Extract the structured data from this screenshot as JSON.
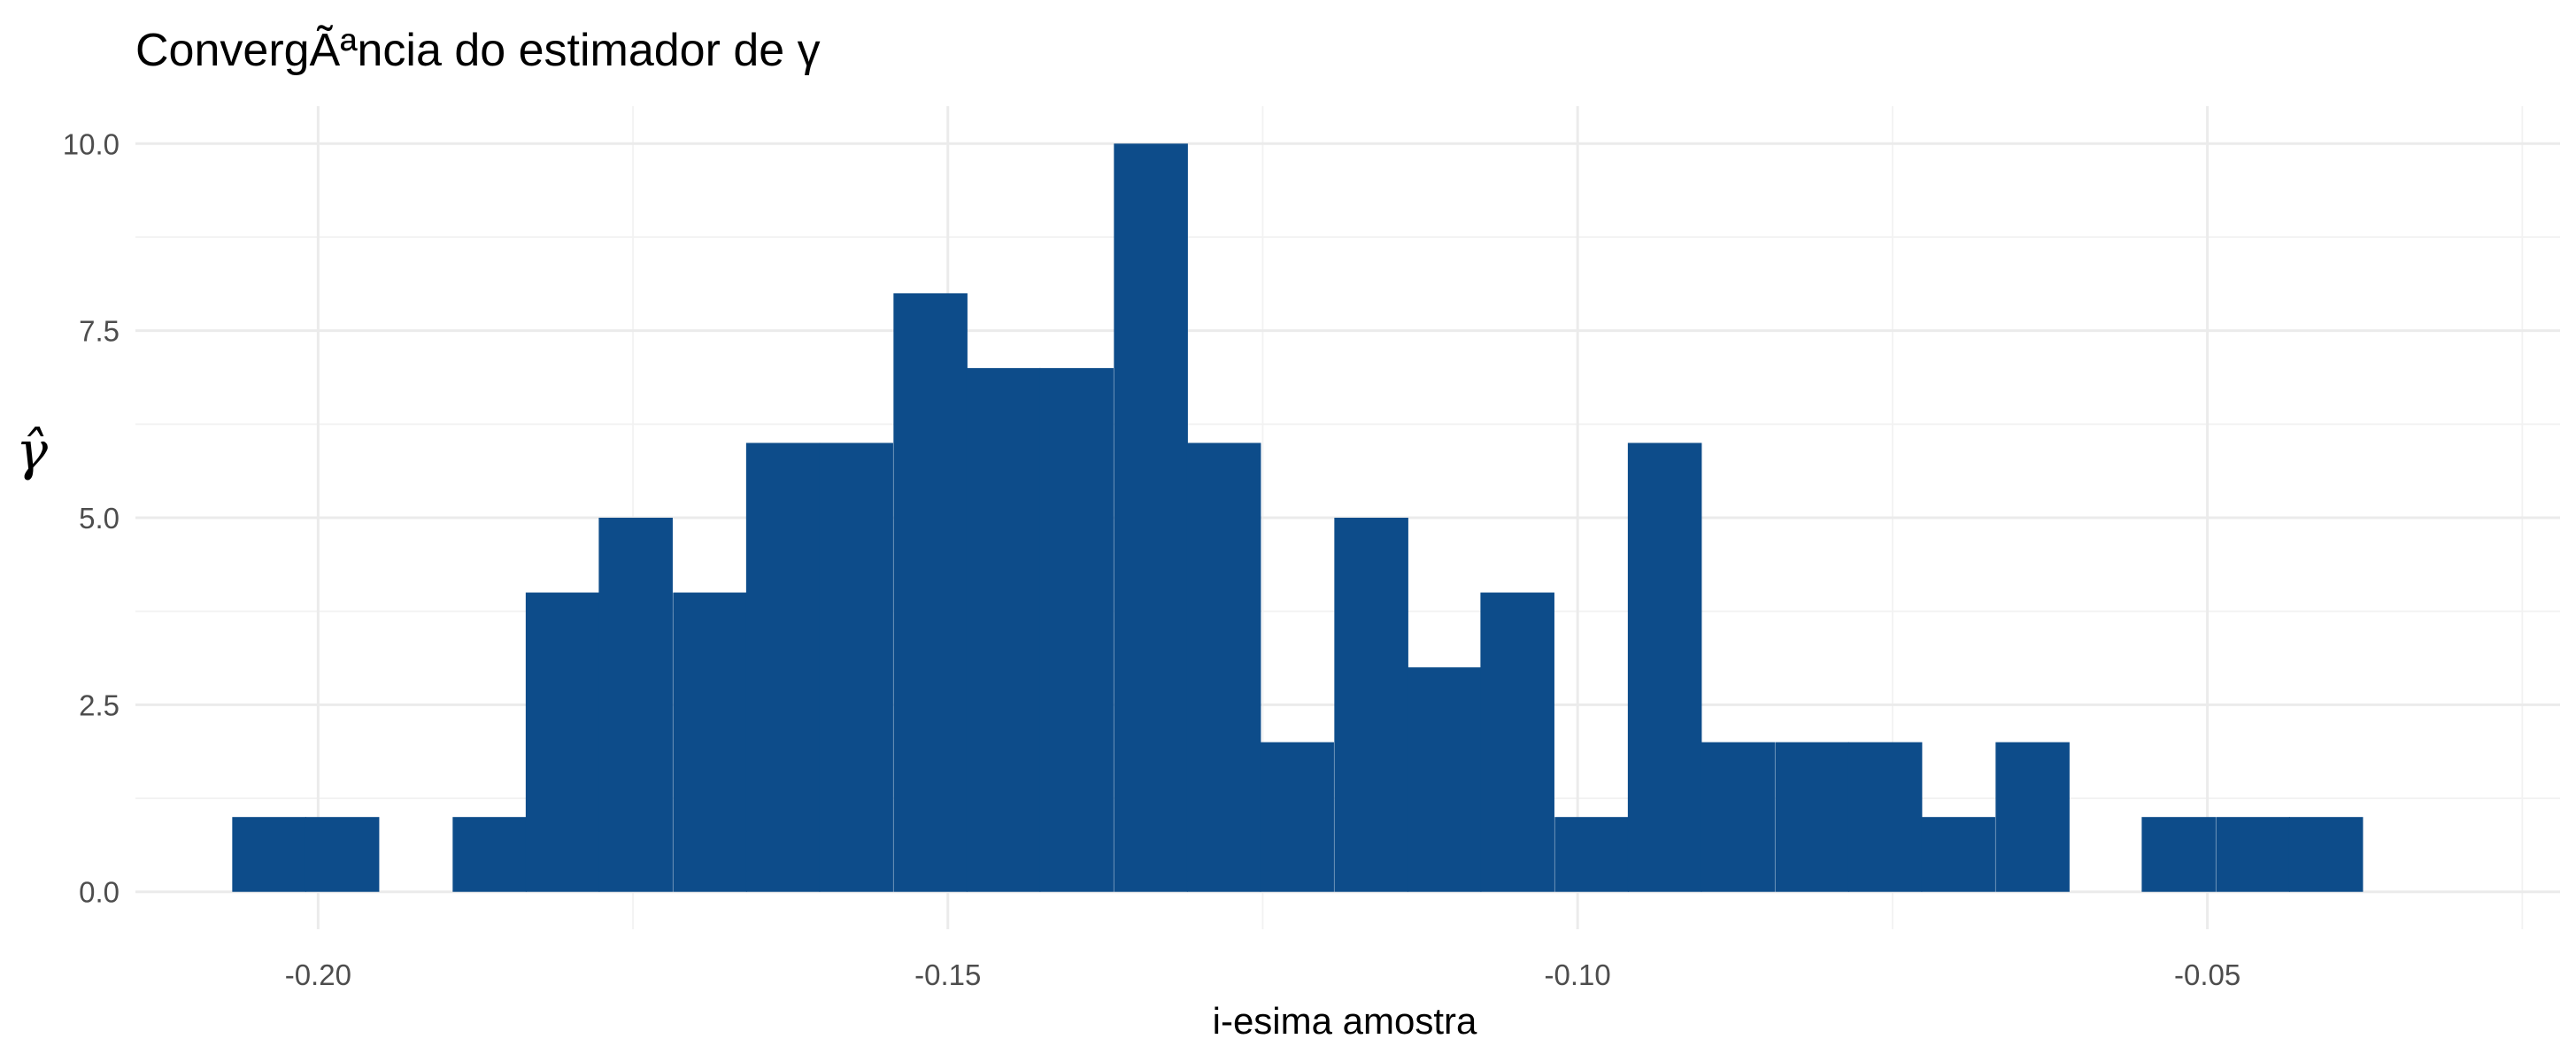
{
  "chart_data": {
    "type": "bar",
    "title": "ConvergÃªncia do estimador de γ",
    "xlabel": "i-esima amostra",
    "ylabel": "γ̂",
    "xlim": [
      -0.2145,
      -0.022
    ],
    "ylim": [
      -0.5,
      10.5
    ],
    "x_ticks": [
      -0.2,
      -0.15,
      -0.1,
      -0.05
    ],
    "x_tick_labels": [
      "-0.20",
      "-0.15",
      "-0.10",
      "-0.05"
    ],
    "y_ticks": [
      0,
      2.5,
      5,
      7.5,
      10
    ],
    "y_tick_labels": [
      "0.0",
      "2.5",
      "5.0",
      "7.5",
      "10.0"
    ],
    "bin_width": 0.00583,
    "bins": [
      {
        "x": -0.2039,
        "count": 1
      },
      {
        "x": -0.1981,
        "count": 1
      },
      {
        "x": -0.1923,
        "count": 0
      },
      {
        "x": -0.1864,
        "count": 1
      },
      {
        "x": -0.1806,
        "count": 4
      },
      {
        "x": -0.1748,
        "count": 5
      },
      {
        "x": -0.1689,
        "count": 4
      },
      {
        "x": -0.1631,
        "count": 6
      },
      {
        "x": -0.1573,
        "count": 6
      },
      {
        "x": -0.1514,
        "count": 8
      },
      {
        "x": -0.1456,
        "count": 7
      },
      {
        "x": -0.1398,
        "count": 7
      },
      {
        "x": -0.1339,
        "count": 10
      },
      {
        "x": -0.1281,
        "count": 6
      },
      {
        "x": -0.1223,
        "count": 2
      },
      {
        "x": -0.1164,
        "count": 5
      },
      {
        "x": -0.1106,
        "count": 3
      },
      {
        "x": -0.1048,
        "count": 4
      },
      {
        "x": -0.0989,
        "count": 1
      },
      {
        "x": -0.0931,
        "count": 6
      },
      {
        "x": -0.0873,
        "count": 2
      },
      {
        "x": -0.0814,
        "count": 2
      },
      {
        "x": -0.0756,
        "count": 2
      },
      {
        "x": -0.0698,
        "count": 1
      },
      {
        "x": -0.0639,
        "count": 2
      },
      {
        "x": -0.0581,
        "count": 0
      },
      {
        "x": -0.0523,
        "count": 1
      },
      {
        "x": -0.0464,
        "count": 1
      },
      {
        "x": -0.0406,
        "count": 1
      }
    ],
    "bar_color": "#0d4c8a",
    "grid": true,
    "legend": "none"
  }
}
